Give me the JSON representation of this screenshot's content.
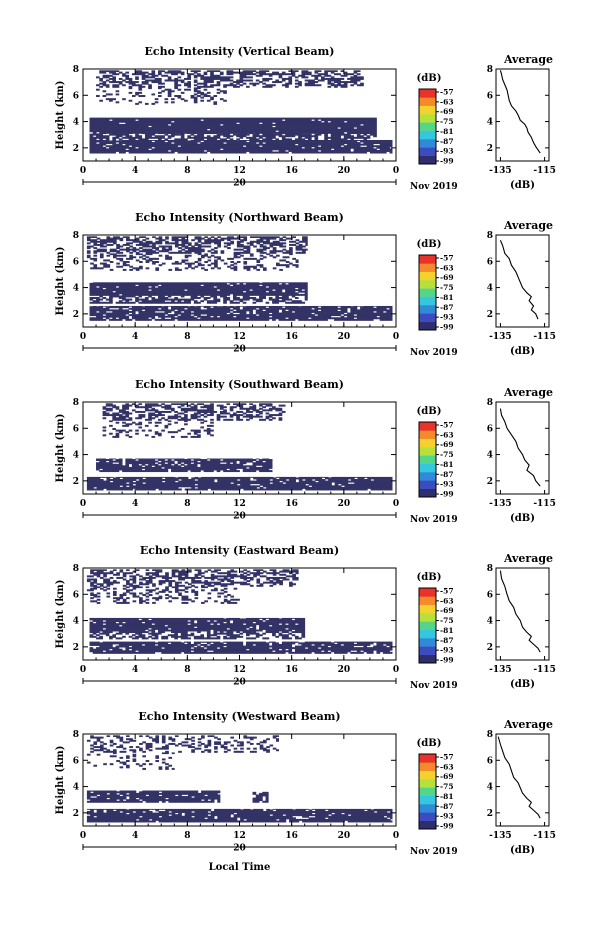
{
  "chart_data": [
    {
      "type": "heatmap",
      "title": "Echo Intensity (Vertical Beam)",
      "ylabel": "Height (km)",
      "xlabel": "",
      "x_ticks": [
        "0",
        "4",
        "8",
        "12",
        "16",
        "20",
        "0"
      ],
      "y_ticks": [
        "2",
        "4",
        "6",
        "8"
      ],
      "xlim": [
        0,
        24
      ],
      "ylim": [
        1,
        8
      ],
      "day_label": "20",
      "date_label": "Nov 2019",
      "colorbar": {
        "unit": "(dB)",
        "ticks": [
          "-57",
          "-63",
          "-69",
          "-75",
          "-81",
          "-87",
          "-93",
          "-99"
        ],
        "range": [
          -99,
          -57
        ]
      },
      "layers": [
        {
          "hmin": 6.6,
          "hmax": 7.9,
          "t0": 1,
          "t1": 21.5,
          "fill": 0.5
        },
        {
          "hmin": 5.3,
          "hmax": 6.6,
          "t0": 1,
          "t1": 11,
          "fill": 0.2
        },
        {
          "hmin": 3.1,
          "hmax": 4.3,
          "t0": 0.5,
          "t1": 22.5,
          "fill": 0.97
        },
        {
          "hmin": 2.6,
          "hmax": 3.1,
          "t0": 0.5,
          "t1": 22.5,
          "fill": 0.7
        },
        {
          "hmin": 1.6,
          "hmax": 2.6,
          "t0": 0.5,
          "t1": 23.7,
          "fill": 0.94
        }
      ],
      "average": {
        "title": "Average",
        "xlabel": "(dB)",
        "x_ticks": [
          "-135",
          "-115"
        ],
        "y_ticks": [
          "2",
          "4",
          "6",
          "8"
        ],
        "xlim": [
          -137,
          -113
        ],
        "ylim": [
          1,
          8
        ],
        "x": [
          -135,
          -134.5,
          -134,
          -133,
          -132,
          -131.5,
          -131,
          -130,
          -128,
          -127,
          -126,
          -124,
          -123,
          -122.5,
          -121,
          -120,
          -119,
          -117
        ],
        "y": [
          7.9,
          7.6,
          7.2,
          6.8,
          6.4,
          6.0,
          5.6,
          5.2,
          4.8,
          4.5,
          4.1,
          3.8,
          3.5,
          3.2,
          2.8,
          2.4,
          2.1,
          1.6
        ]
      }
    },
    {
      "type": "heatmap",
      "title": "Echo Intensity (Northward Beam)",
      "ylabel": "Height (km)",
      "xlabel": "",
      "x_ticks": [
        "0",
        "4",
        "8",
        "12",
        "16",
        "20",
        "0"
      ],
      "y_ticks": [
        "2",
        "4",
        "6",
        "8"
      ],
      "xlim": [
        0,
        24
      ],
      "ylim": [
        1,
        8
      ],
      "day_label": "20",
      "date_label": "Nov 2019",
      "colorbar": {
        "unit": "(dB)",
        "ticks": [
          "-57",
          "-63",
          "-69",
          "-75",
          "-81",
          "-87",
          "-93",
          "-99"
        ],
        "range": [
          -99,
          -57
        ]
      },
      "layers": [
        {
          "hmin": 6.6,
          "hmax": 7.9,
          "t0": 0.3,
          "t1": 17.2,
          "fill": 0.55
        },
        {
          "hmin": 5.3,
          "hmax": 6.6,
          "t0": 0.3,
          "t1": 16.5,
          "fill": 0.3
        },
        {
          "hmin": 3.4,
          "hmax": 4.4,
          "t0": 0.5,
          "t1": 17.2,
          "fill": 0.95
        },
        {
          "hmin": 2.8,
          "hmax": 3.4,
          "t0": 0.5,
          "t1": 17.2,
          "fill": 0.6
        },
        {
          "hmin": 1.5,
          "hmax": 2.6,
          "t0": 0.5,
          "t1": 23.7,
          "fill": 0.85
        }
      ],
      "average": {
        "title": "Average",
        "xlabel": "(dB)",
        "x_ticks": [
          "-135",
          "-115"
        ],
        "y_ticks": [
          "2",
          "4",
          "6",
          "8"
        ],
        "xlim": [
          -137,
          -113
        ],
        "ylim": [
          1,
          8
        ],
        "x": [
          -135,
          -134,
          -133,
          -131,
          -130,
          -128,
          -127,
          -126,
          -125,
          -123,
          -121,
          -122,
          -120,
          -121,
          -119,
          -118
        ],
        "y": [
          7.6,
          7.2,
          6.6,
          6.2,
          5.7,
          5.2,
          4.8,
          4.4,
          4.0,
          3.6,
          3.3,
          3.0,
          2.6,
          2.3,
          2.0,
          1.6
        ]
      }
    },
    {
      "type": "heatmap",
      "title": "Echo Intensity (Southward Beam)",
      "ylabel": "Height (km)",
      "xlabel": "",
      "x_ticks": [
        "0",
        "4",
        "8",
        "12",
        "16",
        "20",
        "0"
      ],
      "y_ticks": [
        "2",
        "4",
        "6",
        "8"
      ],
      "xlim": [
        0,
        24
      ],
      "ylim": [
        1,
        8
      ],
      "day_label": "20",
      "date_label": "Nov 2019",
      "colorbar": {
        "unit": "(dB)",
        "ticks": [
          "-57",
          "-63",
          "-69",
          "-75",
          "-81",
          "-87",
          "-93",
          "-99"
        ],
        "range": [
          -99,
          -57
        ]
      },
      "layers": [
        {
          "hmin": 6.6,
          "hmax": 7.9,
          "t0": 1.5,
          "t1": 15.5,
          "fill": 0.5
        },
        {
          "hmin": 5.3,
          "hmax": 6.6,
          "t0": 1.5,
          "t1": 10,
          "fill": 0.25
        },
        {
          "hmin": 2.7,
          "hmax": 3.7,
          "t0": 1,
          "t1": 14.5,
          "fill": 0.85
        },
        {
          "hmin": 1.3,
          "hmax": 2.3,
          "t0": 0.3,
          "t1": 23.7,
          "fill": 0.9
        }
      ],
      "average": {
        "title": "Average",
        "xlabel": "(dB)",
        "x_ticks": [
          "-135",
          "-115"
        ],
        "y_ticks": [
          "2",
          "4",
          "6",
          "8"
        ],
        "xlim": [
          -137,
          -113
        ],
        "ylim": [
          1,
          8
        ],
        "x": [
          -135,
          -134.5,
          -133,
          -132,
          -130,
          -128,
          -127,
          -125,
          -124,
          -122,
          -123,
          -120,
          -119,
          -117
        ],
        "y": [
          7.5,
          7.0,
          6.5,
          6.0,
          5.5,
          5.0,
          4.5,
          4.0,
          3.6,
          3.2,
          2.8,
          2.4,
          2.0,
          1.6
        ]
      }
    },
    {
      "type": "heatmap",
      "title": "Echo Intensity (Eastward Beam)",
      "ylabel": "Height (km)",
      "xlabel": "",
      "x_ticks": [
        "0",
        "4",
        "8",
        "12",
        "16",
        "20",
        "0"
      ],
      "y_ticks": [
        "2",
        "4",
        "6",
        "8"
      ],
      "xlim": [
        0,
        24
      ],
      "ylim": [
        1,
        8
      ],
      "day_label": "20",
      "date_label": "Nov 2019",
      "colorbar": {
        "unit": "(dB)",
        "ticks": [
          "-57",
          "-63",
          "-69",
          "-75",
          "-81",
          "-87",
          "-93",
          "-99"
        ],
        "range": [
          -99,
          -57
        ]
      },
      "layers": [
        {
          "hmin": 6.6,
          "hmax": 7.9,
          "t0": 0.3,
          "t1": 16.5,
          "fill": 0.5
        },
        {
          "hmin": 5.3,
          "hmax": 6.6,
          "t0": 0.3,
          "t1": 12,
          "fill": 0.3
        },
        {
          "hmin": 3.2,
          "hmax": 4.2,
          "t0": 0.5,
          "t1": 17,
          "fill": 0.92
        },
        {
          "hmin": 2.6,
          "hmax": 3.2,
          "t0": 0.5,
          "t1": 17,
          "fill": 0.55
        },
        {
          "hmin": 1.5,
          "hmax": 2.4,
          "t0": 0.5,
          "t1": 23.7,
          "fill": 0.85
        }
      ],
      "average": {
        "title": "Average",
        "xlabel": "(dB)",
        "x_ticks": [
          "-135",
          "-115"
        ],
        "y_ticks": [
          "2",
          "4",
          "6",
          "8"
        ],
        "xlim": [
          -137,
          -113
        ],
        "ylim": [
          1,
          8
        ],
        "x": [
          -135,
          -134.5,
          -133,
          -132,
          -131,
          -129,
          -128,
          -126,
          -125,
          -123,
          -121,
          -122,
          -120,
          -118,
          -117
        ],
        "y": [
          7.8,
          7.2,
          6.6,
          6.0,
          5.5,
          5.0,
          4.5,
          4.0,
          3.5,
          3.1,
          2.8,
          2.5,
          2.2,
          1.9,
          1.6
        ]
      }
    },
    {
      "type": "heatmap",
      "title": "Echo Intensity (Westward Beam)",
      "ylabel": "Height (km)",
      "xlabel": "Local Time",
      "x_ticks": [
        "0",
        "4",
        "8",
        "12",
        "16",
        "20",
        "0"
      ],
      "y_ticks": [
        "2",
        "4",
        "6",
        "8"
      ],
      "xlim": [
        0,
        24
      ],
      "ylim": [
        1,
        8
      ],
      "day_label": "20",
      "date_label": "Nov 2019",
      "colorbar": {
        "unit": "(dB)",
        "ticks": [
          "-57",
          "-63",
          "-69",
          "-75",
          "-81",
          "-87",
          "-93",
          "-99"
        ],
        "range": [
          -99,
          -57
        ]
      },
      "layers": [
        {
          "hmin": 6.6,
          "hmax": 7.9,
          "t0": 0.3,
          "t1": 15,
          "fill": 0.3
        },
        {
          "hmin": 5.3,
          "hmax": 6.6,
          "t0": 0.3,
          "t1": 7,
          "fill": 0.15
        },
        {
          "hmin": 2.8,
          "hmax": 3.7,
          "t0": 0.3,
          "t1": 10.5,
          "fill": 0.9
        },
        {
          "hmin": 2.8,
          "hmax": 3.6,
          "t0": 13,
          "t1": 14.2,
          "fill": 0.75
        },
        {
          "hmin": 1.3,
          "hmax": 2.3,
          "t0": 0.3,
          "t1": 23.7,
          "fill": 0.9
        }
      ],
      "average": {
        "title": "Average",
        "xlabel": "(dB)",
        "x_ticks": [
          "-135",
          "-115"
        ],
        "y_ticks": [
          "2",
          "4",
          "6",
          "8"
        ],
        "xlim": [
          -137,
          -113
        ],
        "ylim": [
          1,
          8
        ],
        "x": [
          -136,
          -135,
          -134,
          -133,
          -131,
          -130,
          -129,
          -127,
          -126,
          -125,
          -123,
          -121,
          -122,
          -120,
          -118,
          -117
        ],
        "y": [
          7.8,
          7.2,
          6.7,
          6.2,
          5.7,
          5.2,
          4.7,
          4.3,
          3.9,
          3.5,
          3.1,
          2.8,
          2.5,
          2.2,
          1.9,
          1.6
        ]
      }
    }
  ],
  "colors": {
    "echo": "#333366",
    "axis": "#000000",
    "colorbar": [
      "#2e2e6e",
      "#3c4cc0",
      "#2f8bd8",
      "#34c8e0",
      "#53d68a",
      "#b8e03a",
      "#f4d22e",
      "#f58a2c",
      "#e8332a"
    ]
  }
}
